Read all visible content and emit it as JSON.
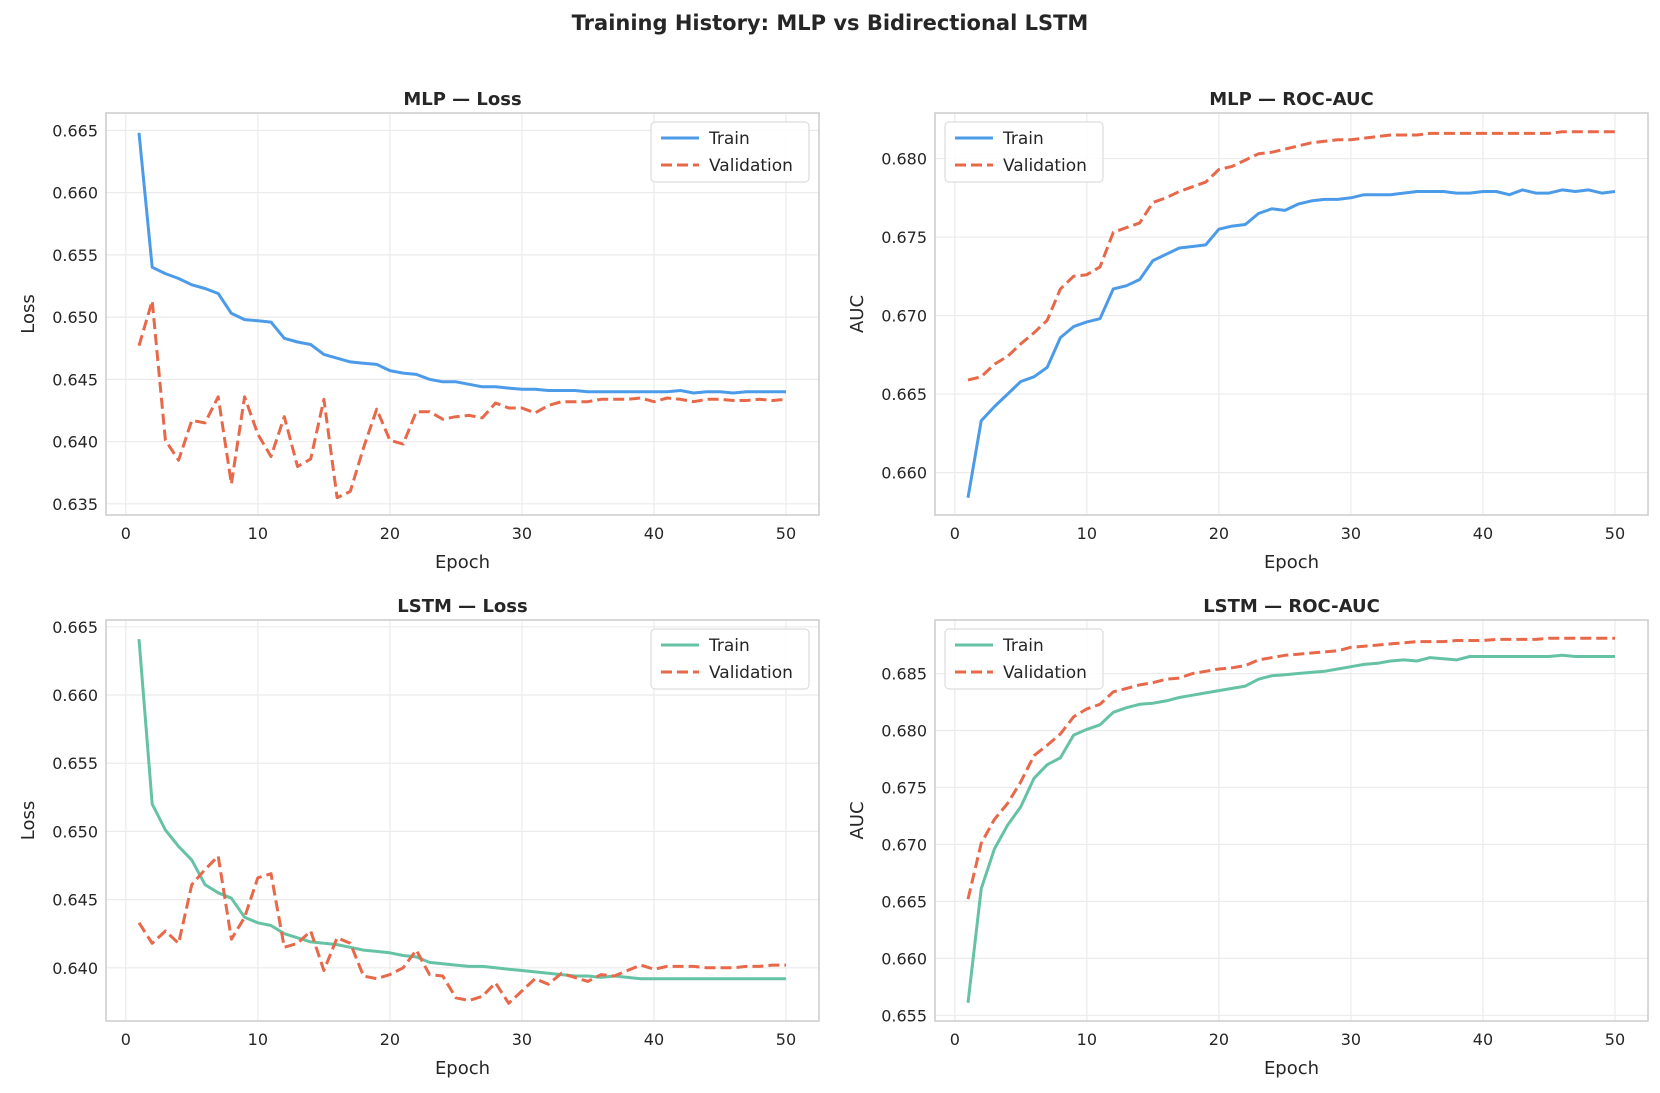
{
  "chart_data": {
    "title": "Training History: MLP vs Bidirectional LSTM",
    "panels": [
      {
        "type": "line",
        "title": "MLP — Loss",
        "xlabel": "Epoch",
        "ylabel": "Loss",
        "xlim": [
          -1.5,
          52.5
        ],
        "ylim": [
          0.6341,
          0.6664
        ],
        "xticks": [
          0,
          10,
          20,
          30,
          40,
          50
        ],
        "yticks": [
          0.635,
          0.64,
          0.645,
          0.65,
          0.655,
          0.66,
          0.665
        ],
        "ytick_labels": [
          "0.635",
          "0.640",
          "0.645",
          "0.650",
          "0.655",
          "0.660",
          "0.665"
        ],
        "grid": true,
        "legend": "upper right",
        "series": [
          {
            "name": "Train",
            "color": "#4C9BE8",
            "style": "solid",
            "values": [
              0.6648,
              0.654,
              0.6535,
              0.6531,
              0.6526,
              0.6523,
              0.6519,
              0.6503,
              0.6498,
              0.6497,
              0.6496,
              0.6483,
              0.648,
              0.6478,
              0.647,
              0.6467,
              0.6464,
              0.6463,
              0.6462,
              0.6457,
              0.6455,
              0.6454,
              0.645,
              0.6448,
              0.6448,
              0.6446,
              0.6444,
              0.6444,
              0.6443,
              0.6442,
              0.6442,
              0.6441,
              0.6441,
              0.6441,
              0.644,
              0.644,
              0.644,
              0.644,
              0.644,
              0.644,
              0.644,
              0.6441,
              0.6439,
              0.644,
              0.644,
              0.6439,
              0.644,
              0.644,
              0.644,
              0.644
            ]
          },
          {
            "name": "Validation",
            "color": "#E8684A",
            "style": "dashed",
            "values": [
              0.6477,
              0.6513,
              0.6401,
              0.6385,
              0.6417,
              0.6415,
              0.6436,
              0.6366,
              0.6436,
              0.6406,
              0.6388,
              0.642,
              0.638,
              0.6386,
              0.6434,
              0.6355,
              0.636,
              0.6395,
              0.6426,
              0.6401,
              0.6398,
              0.6424,
              0.6424,
              0.6418,
              0.642,
              0.6421,
              0.6419,
              0.6431,
              0.6427,
              0.6427,
              0.6423,
              0.6429,
              0.6432,
              0.6432,
              0.6432,
              0.6434,
              0.6434,
              0.6434,
              0.6435,
              0.6432,
              0.6435,
              0.6434,
              0.6432,
              0.6434,
              0.6434,
              0.6433,
              0.6433,
              0.6434,
              0.6433,
              0.6434
            ]
          }
        ]
      },
      {
        "type": "line",
        "title": "MLP — ROC-AUC",
        "xlabel": "Epoch",
        "ylabel": "AUC",
        "xlim": [
          -1.5,
          52.5
        ],
        "ylim": [
          0.6573,
          0.6829
        ],
        "xticks": [
          0,
          10,
          20,
          30,
          40,
          50
        ],
        "yticks": [
          0.66,
          0.665,
          0.67,
          0.675,
          0.68
        ],
        "ytick_labels": [
          "0.660",
          "0.665",
          "0.670",
          "0.675",
          "0.680"
        ],
        "grid": true,
        "legend": "upper left",
        "series": [
          {
            "name": "Train",
            "color": "#4C9BE8",
            "style": "solid",
            "values": [
              0.6584,
              0.6633,
              0.6642,
              0.665,
              0.6658,
              0.6661,
              0.6667,
              0.6686,
              0.6693,
              0.6696,
              0.6698,
              0.6717,
              0.6719,
              0.6723,
              0.6735,
              0.6739,
              0.6743,
              0.6744,
              0.6745,
              0.6755,
              0.6757,
              0.6758,
              0.6765,
              0.6768,
              0.6767,
              0.6771,
              0.6773,
              0.6774,
              0.6774,
              0.6775,
              0.6777,
              0.6777,
              0.6777,
              0.6778,
              0.6779,
              0.6779,
              0.6779,
              0.6778,
              0.6778,
              0.6779,
              0.6779,
              0.6777,
              0.678,
              0.6778,
              0.6778,
              0.678,
              0.6779,
              0.678,
              0.6778,
              0.6779
            ]
          },
          {
            "name": "Validation",
            "color": "#E8684A",
            "style": "dashed",
            "values": [
              0.6659,
              0.6661,
              0.6669,
              0.6674,
              0.6682,
              0.6689,
              0.6697,
              0.6717,
              0.6725,
              0.6726,
              0.6731,
              0.6753,
              0.6756,
              0.6759,
              0.6772,
              0.6775,
              0.6779,
              0.6782,
              0.6785,
              0.6793,
              0.6795,
              0.6799,
              0.6803,
              0.6804,
              0.6806,
              0.6808,
              0.681,
              0.6811,
              0.6812,
              0.6812,
              0.6813,
              0.6814,
              0.6815,
              0.6815,
              0.6815,
              0.6816,
              0.6816,
              0.6816,
              0.6816,
              0.6816,
              0.6816,
              0.6816,
              0.6816,
              0.6816,
              0.6816,
              0.6817,
              0.6817,
              0.6817,
              0.6817,
              0.6817
            ]
          }
        ]
      },
      {
        "type": "line",
        "title": "LSTM — Loss",
        "xlabel": "Epoch",
        "ylabel": "Loss",
        "xlim": [
          -1.5,
          52.5
        ],
        "ylim": [
          0.6361,
          0.6655
        ],
        "xticks": [
          0,
          10,
          20,
          30,
          40,
          50
        ],
        "yticks": [
          0.64,
          0.645,
          0.65,
          0.655,
          0.66,
          0.665
        ],
        "ytick_labels": [
          "0.640",
          "0.645",
          "0.650",
          "0.655",
          "0.660",
          "0.665"
        ],
        "grid": true,
        "legend": "upper right",
        "series": [
          {
            "name": "Train",
            "color": "#66C2A5",
            "style": "solid",
            "values": [
              0.6641,
              0.652,
              0.6501,
              0.6489,
              0.6479,
              0.6461,
              0.6455,
              0.6451,
              0.6437,
              0.6433,
              0.6431,
              0.6425,
              0.6422,
              0.6419,
              0.6418,
              0.6417,
              0.6415,
              0.6413,
              0.6412,
              0.6411,
              0.6409,
              0.6408,
              0.6404,
              0.6403,
              0.6402,
              0.6401,
              0.6401,
              0.64,
              0.6399,
              0.6398,
              0.6397,
              0.6396,
              0.6395,
              0.6394,
              0.6394,
              0.6393,
              0.6394,
              0.6393,
              0.6392,
              0.6392,
              0.6392,
              0.6392,
              0.6392,
              0.6392,
              0.6392,
              0.6392,
              0.6392,
              0.6392,
              0.6392,
              0.6392
            ]
          },
          {
            "name": "Validation",
            "color": "#E8684A",
            "style": "dashed",
            "values": [
              0.6433,
              0.6418,
              0.6427,
              0.6418,
              0.6461,
              0.6472,
              0.6482,
              0.6421,
              0.6437,
              0.6466,
              0.6469,
              0.6415,
              0.6418,
              0.6427,
              0.6398,
              0.6422,
              0.6418,
              0.6394,
              0.6392,
              0.6395,
              0.64,
              0.6413,
              0.6395,
              0.6394,
              0.6378,
              0.6376,
              0.6379,
              0.6389,
              0.6374,
              0.6383,
              0.6392,
              0.6388,
              0.6396,
              0.6393,
              0.639,
              0.6395,
              0.6394,
              0.6398,
              0.6402,
              0.6399,
              0.6401,
              0.6401,
              0.6401,
              0.64,
              0.64,
              0.64,
              0.6401,
              0.6401,
              0.6402,
              0.6402
            ]
          }
        ]
      },
      {
        "type": "line",
        "title": "LSTM — ROC-AUC",
        "xlabel": "Epoch",
        "ylabel": "AUC",
        "xlim": [
          -1.5,
          52.5
        ],
        "ylim": [
          0.6545,
          0.6897
        ],
        "xticks": [
          0,
          10,
          20,
          30,
          40,
          50
        ],
        "yticks": [
          0.655,
          0.66,
          0.665,
          0.67,
          0.675,
          0.68,
          0.685
        ],
        "ytick_labels": [
          "0.655",
          "0.660",
          "0.665",
          "0.670",
          "0.675",
          "0.680",
          "0.685"
        ],
        "grid": true,
        "legend": "upper left",
        "series": [
          {
            "name": "Train",
            "color": "#66C2A5",
            "style": "solid",
            "values": [
              0.6561,
              0.6661,
              0.6696,
              0.6717,
              0.6733,
              0.6758,
              0.677,
              0.6776,
              0.6796,
              0.6801,
              0.6805,
              0.6816,
              0.682,
              0.6823,
              0.6824,
              0.6826,
              0.6829,
              0.6831,
              0.6833,
              0.6835,
              0.6837,
              0.6839,
              0.6845,
              0.6848,
              0.6849,
              0.685,
              0.6851,
              0.6852,
              0.6854,
              0.6856,
              0.6858,
              0.6859,
              0.6861,
              0.6862,
              0.6861,
              0.6864,
              0.6863,
              0.6862,
              0.6865,
              0.6865,
              0.6865,
              0.6865,
              0.6865,
              0.6865,
              0.6865,
              0.6866,
              0.6865,
              0.6865,
              0.6865,
              0.6865
            ]
          },
          {
            "name": "Validation",
            "color": "#E8684A",
            "style": "dashed",
            "values": [
              0.6652,
              0.6701,
              0.6722,
              0.6736,
              0.6755,
              0.6778,
              0.6787,
              0.6797,
              0.6812,
              0.6819,
              0.6823,
              0.6834,
              0.6837,
              0.684,
              0.6842,
              0.6845,
              0.6846,
              0.685,
              0.6852,
              0.6854,
              0.6855,
              0.6857,
              0.6862,
              0.6864,
              0.6866,
              0.6867,
              0.6868,
              0.6869,
              0.687,
              0.6873,
              0.6874,
              0.6875,
              0.6876,
              0.6877,
              0.6878,
              0.6878,
              0.6878,
              0.6879,
              0.6879,
              0.6879,
              0.688,
              0.688,
              0.688,
              0.688,
              0.6881,
              0.6881,
              0.6881,
              0.6881,
              0.6881,
              0.6881
            ]
          }
        ]
      }
    ]
  }
}
